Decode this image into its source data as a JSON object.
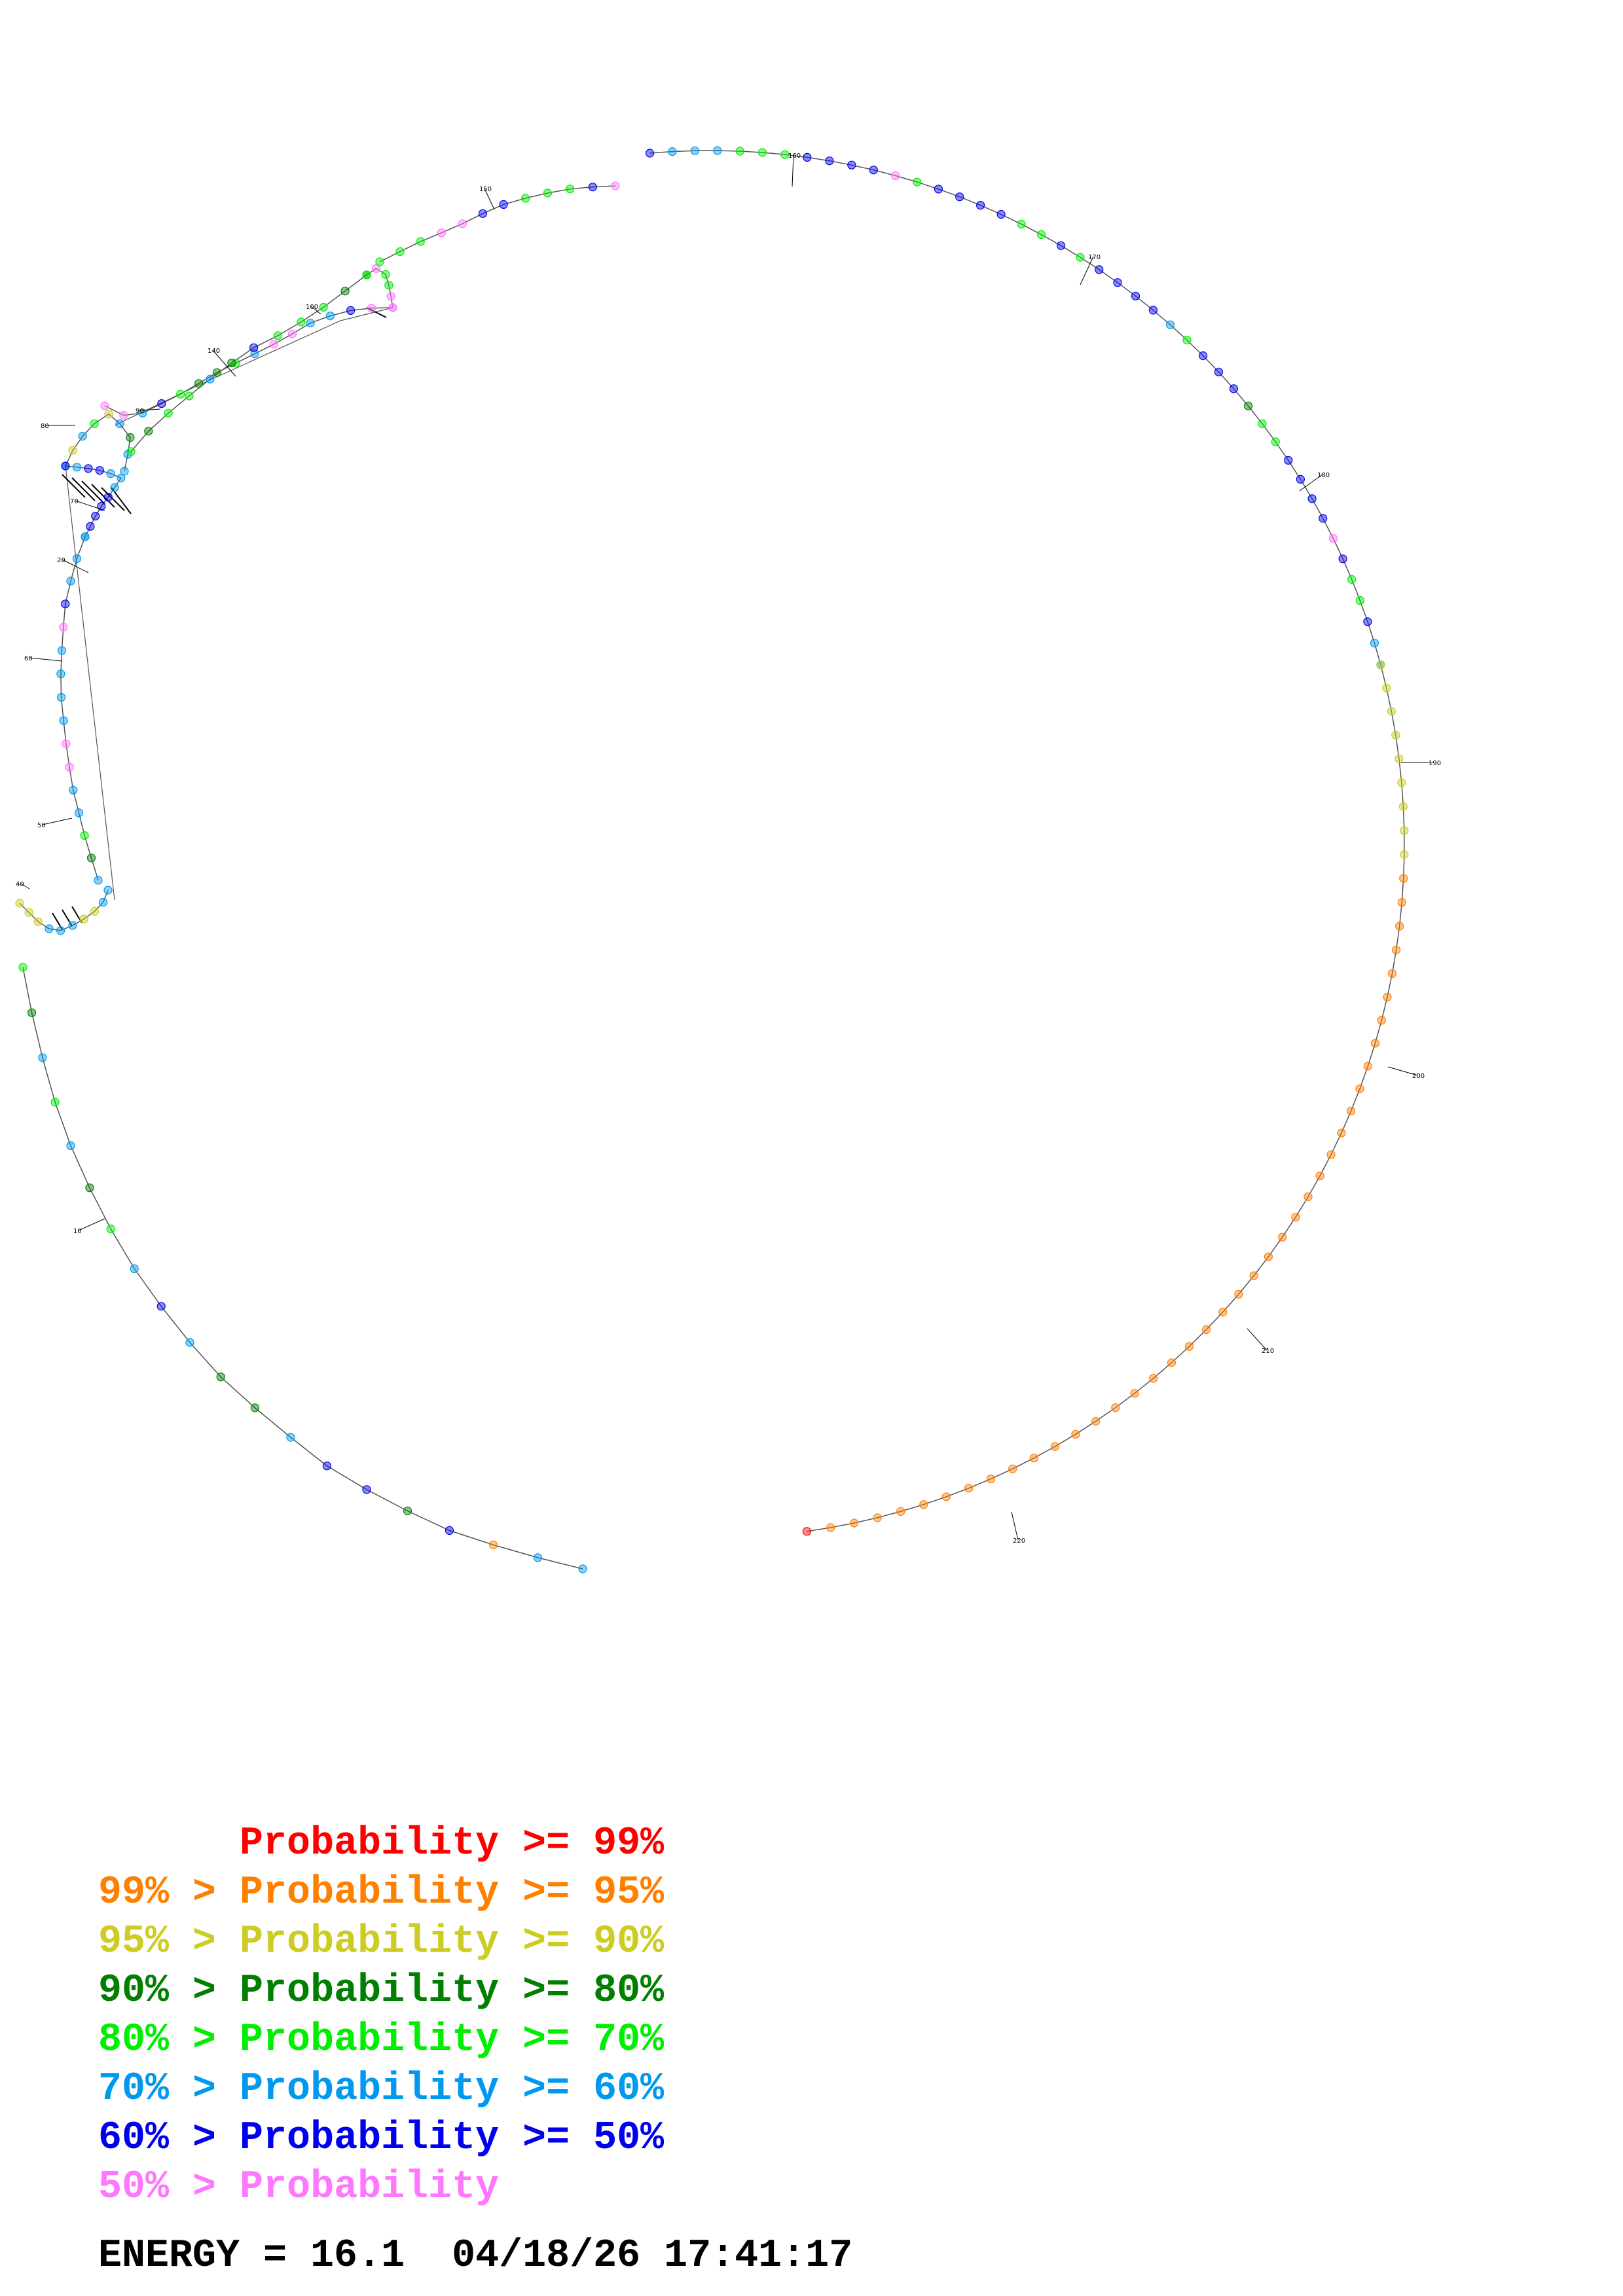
{
  "legend": [
    {
      "prefix": "    ",
      "label": "Probability >= 99%",
      "color": "#ff0000"
    },
    {
      "prefix": "99% > ",
      "label": "Probability >= 95%",
      "color": "#ff7f00"
    },
    {
      "prefix": "95% > ",
      "label": "Probability >= 90%",
      "color": "#cccc22"
    },
    {
      "prefix": "90% > ",
      "label": "Probability >= 80%",
      "color": "#007f00"
    },
    {
      "prefix": "80% > ",
      "label": "Probability >= 70%",
      "color": "#00ee00"
    },
    {
      "prefix": "70% > ",
      "label": "Probability >= 60%",
      "color": "#0099ee"
    },
    {
      "prefix": "60% > ",
      "label": "Probability >= 50%",
      "color": "#0000ee"
    },
    {
      "prefix": "50% > ",
      "label": "Probability",
      "color": "#ff77ff"
    }
  ],
  "footer": {
    "energy_text": "ENERGY = 16.1",
    "timestamp": "04/18/26 17:41:17"
  },
  "position_labels": [
    "10",
    "20",
    "40",
    "50",
    "60",
    "70",
    "80",
    "90",
    "100",
    "140",
    "150",
    "160",
    "170",
    "180",
    "190",
    "200",
    "210",
    "220"
  ],
  "colors": {
    "backbone": "#555555",
    "pair_line": "#000000"
  }
}
